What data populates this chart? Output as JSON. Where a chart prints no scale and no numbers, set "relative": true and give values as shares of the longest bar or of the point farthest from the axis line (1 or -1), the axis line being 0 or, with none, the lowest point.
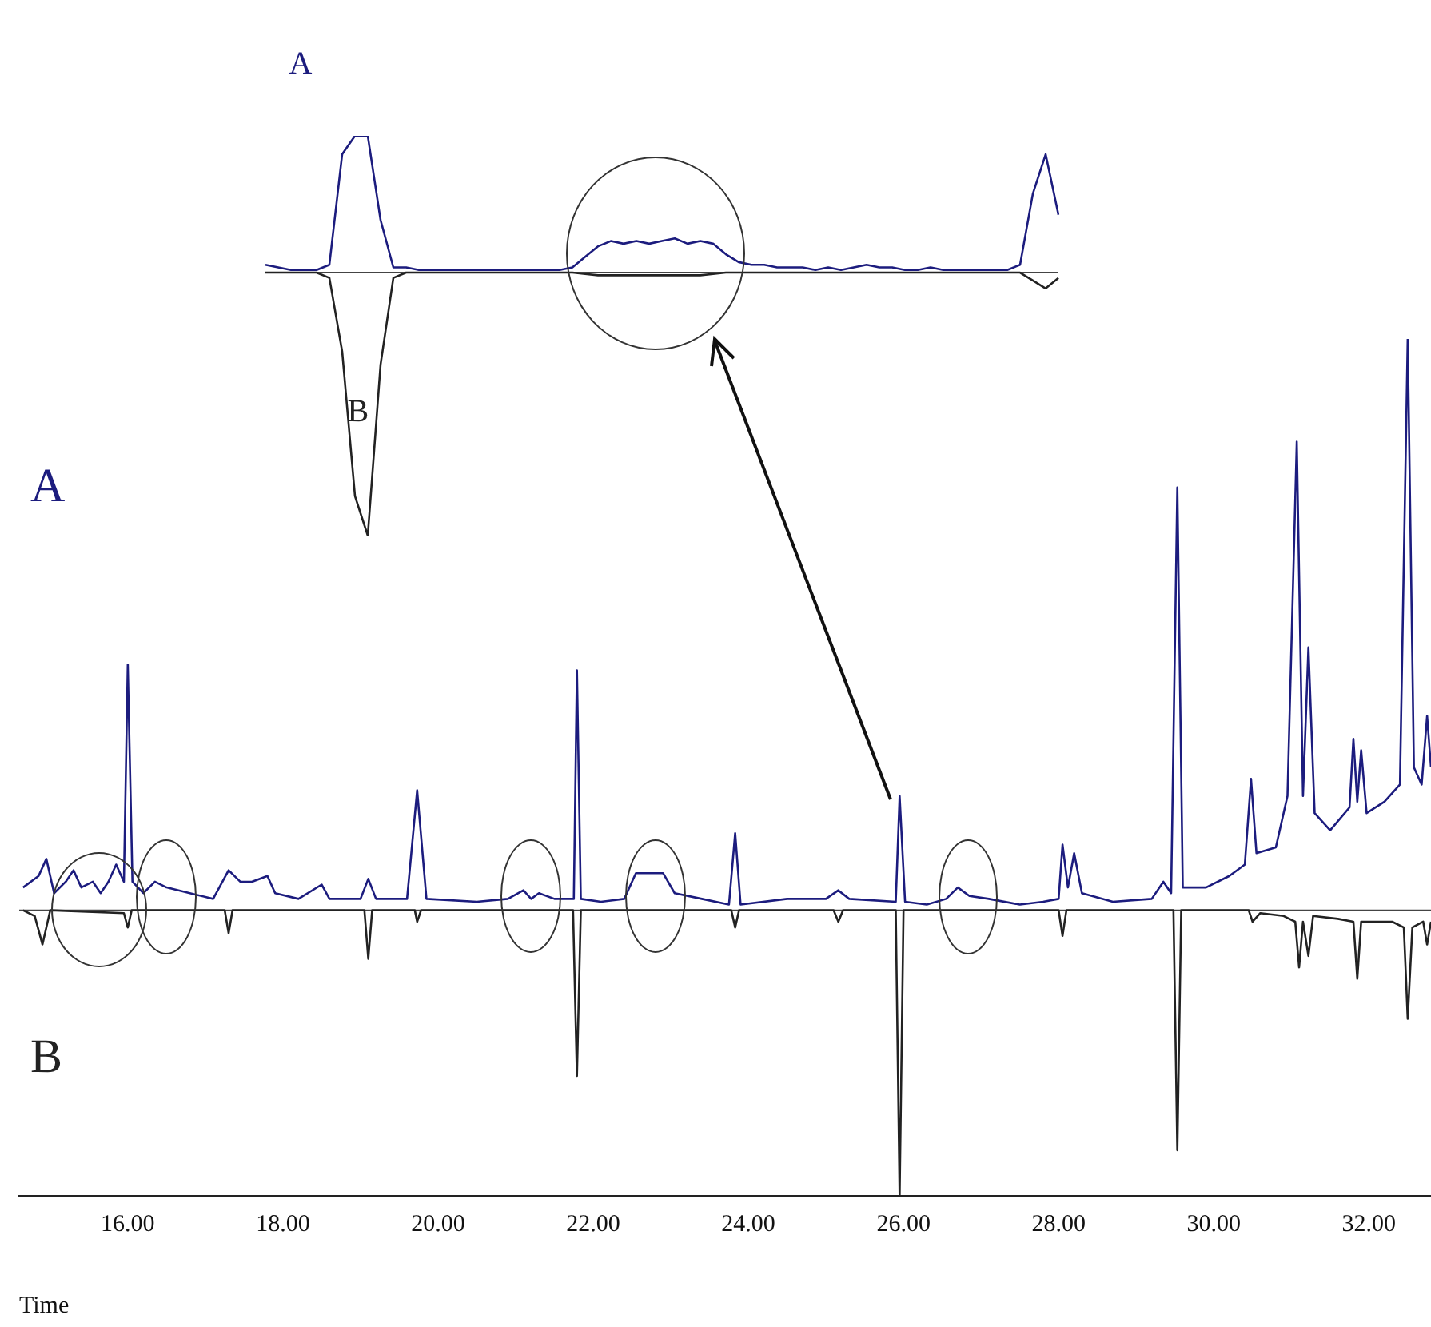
{
  "chart_data": [
    {
      "type": "line",
      "relative": true,
      "xlabel": "Time",
      "xlim": [
        14.6,
        32.8
      ],
      "xticks": [
        {
          "value": 16,
          "label": "16.00"
        },
        {
          "value": 18,
          "label": "18.00"
        },
        {
          "value": 20,
          "label": "20.00"
        },
        {
          "value": 22,
          "label": "22.00"
        },
        {
          "value": 24,
          "label": "24.00"
        },
        {
          "value": 26,
          "label": "26.00"
        },
        {
          "value": 28,
          "label": "28.00"
        },
        {
          "value": 30,
          "label": "30.00"
        },
        {
          "value": 32,
          "label": "32.00"
        }
      ],
      "series": [
        {
          "name": "A",
          "color": "#1c1c7e",
          "x": [
            14.65,
            14.85,
            14.95,
            15.05,
            15.2,
            15.3,
            15.4,
            15.55,
            15.65,
            15.75,
            15.85,
            15.95,
            16.0,
            16.06,
            16.2,
            16.35,
            16.5,
            16.8,
            17.1,
            17.3,
            17.45,
            17.6,
            17.8,
            17.9,
            18.2,
            18.5,
            18.6,
            19.0,
            19.1,
            19.2,
            19.6,
            19.73,
            19.85,
            20.5,
            20.9,
            21.1,
            21.2,
            21.3,
            21.5,
            21.75,
            21.79,
            21.84,
            22.1,
            22.4,
            22.55,
            22.9,
            23.05,
            23.4,
            23.75,
            23.83,
            23.9,
            24.5,
            25.0,
            25.16,
            25.3,
            25.9,
            25.95,
            26.02,
            26.3,
            26.55,
            26.7,
            26.85,
            27.1,
            27.5,
            27.8,
            28.0,
            28.05,
            28.12,
            28.2,
            28.3,
            28.7,
            29.2,
            29.35,
            29.45,
            29.53,
            29.6,
            29.9,
            30.2,
            30.4,
            30.48,
            30.55,
            30.8,
            30.95,
            31.07,
            31.15,
            31.22,
            31.3,
            31.5,
            31.75,
            31.8,
            31.85,
            31.9,
            31.97,
            32.2,
            32.4,
            32.5,
            32.58,
            32.68,
            32.75,
            32.8
          ],
          "values": [
            0.04,
            0.06,
            0.09,
            0.03,
            0.05,
            0.07,
            0.04,
            0.05,
            0.03,
            0.05,
            0.08,
            0.05,
            0.43,
            0.05,
            0.03,
            0.05,
            0.04,
            0.03,
            0.02,
            0.07,
            0.05,
            0.05,
            0.06,
            0.03,
            0.02,
            0.045,
            0.02,
            0.02,
            0.055,
            0.02,
            0.02,
            0.21,
            0.02,
            0.015,
            0.02,
            0.035,
            0.02,
            0.03,
            0.02,
            0.02,
            0.42,
            0.02,
            0.015,
            0.02,
            0.065,
            0.065,
            0.03,
            0.02,
            0.01,
            0.135,
            0.01,
            0.02,
            0.02,
            0.035,
            0.02,
            0.015,
            0.2,
            0.015,
            0.01,
            0.02,
            0.04,
            0.025,
            0.02,
            0.01,
            0.015,
            0.02,
            0.115,
            0.04,
            0.1,
            0.03,
            0.015,
            0.02,
            0.05,
            0.03,
            0.74,
            0.04,
            0.04,
            0.06,
            0.08,
            0.23,
            0.1,
            0.11,
            0.2,
            0.82,
            0.2,
            0.46,
            0.17,
            0.14,
            0.18,
            0.3,
            0.19,
            0.28,
            0.17,
            0.19,
            0.22,
            1.0,
            0.25,
            0.22,
            0.34,
            0.25
          ]
        },
        {
          "name": "B",
          "color": "#222222",
          "x": [
            14.65,
            14.8,
            14.9,
            15.0,
            15.95,
            16.0,
            16.05,
            17.25,
            17.3,
            17.35,
            19.05,
            19.1,
            19.15,
            19.7,
            19.73,
            19.78,
            21.74,
            21.79,
            21.84,
            23.78,
            23.83,
            23.88,
            25.1,
            25.16,
            25.22,
            25.9,
            25.95,
            26.0,
            28.0,
            28.05,
            28.1,
            29.48,
            29.53,
            29.58,
            30.45,
            30.5,
            30.6,
            30.9,
            31.05,
            31.1,
            31.15,
            31.22,
            31.28,
            31.6,
            31.8,
            31.85,
            31.9,
            32.3,
            32.45,
            32.5,
            32.56,
            32.7,
            32.75,
            32.8
          ],
          "values": [
            0,
            -0.01,
            -0.06,
            0,
            -0.005,
            -0.03,
            0,
            0,
            -0.04,
            0,
            0,
            -0.085,
            0,
            0,
            -0.02,
            0,
            0,
            -0.29,
            0,
            0,
            -0.03,
            0,
            0,
            -0.02,
            0,
            0,
            -0.5,
            0,
            0,
            -0.045,
            0,
            0,
            -0.42,
            0,
            0,
            -0.02,
            -0.005,
            -0.01,
            -0.02,
            -0.1,
            -0.02,
            -0.08,
            -0.01,
            -0.015,
            -0.02,
            -0.12,
            -0.02,
            -0.02,
            -0.03,
            -0.19,
            -0.03,
            -0.02,
            -0.06,
            -0.02
          ]
        }
      ]
    },
    {
      "type": "line",
      "relative": true,
      "tick_labels": false,
      "categories": [
        null,
        null,
        null,
        null,
        null,
        null,
        null,
        null,
        null,
        null,
        null,
        null,
        null,
        null,
        null,
        null,
        null,
        null,
        null,
        null,
        null,
        null,
        null,
        null,
        null,
        null,
        null,
        null,
        null,
        null,
        null,
        null,
        null,
        null,
        null,
        null,
        null,
        null,
        null,
        null,
        null,
        null,
        null,
        null,
        null,
        null,
        null,
        null,
        null,
        null,
        null,
        null,
        null,
        null,
        null,
        null,
        null,
        null,
        null,
        null,
        null,
        null,
        null
      ],
      "series": [
        {
          "name": "A",
          "color": "#1c1c7e",
          "values": [
            0.03,
            0.02,
            0.01,
            0.01,
            0.01,
            0.03,
            0.45,
            0.52,
            0.52,
            0.2,
            0.02,
            0.02,
            0.01,
            0.01,
            0.01,
            0.01,
            0.01,
            0.01,
            0.01,
            0.01,
            0.01,
            0.01,
            0.01,
            0.01,
            0.02,
            0.06,
            0.1,
            0.12,
            0.11,
            0.12,
            0.11,
            0.12,
            0.13,
            0.11,
            0.12,
            0.11,
            0.07,
            0.04,
            0.03,
            0.03,
            0.02,
            0.02,
            0.02,
            0.01,
            0.02,
            0.01,
            0.02,
            0.03,
            0.02,
            0.02,
            0.01,
            0.01,
            0.02,
            0.01,
            0.01,
            0.01,
            0.01,
            0.01,
            0.01,
            0.03,
            0.3,
            0.45,
            0.22
          ]
        },
        {
          "name": "B",
          "color": "#222222",
          "values": [
            0,
            0,
            0,
            0,
            0,
            -0.02,
            -0.3,
            -0.85,
            -1,
            -0.35,
            -0.02,
            0,
            0,
            0,
            0,
            0,
            0,
            0,
            0,
            0,
            0,
            0,
            0,
            0,
            0,
            -0.005,
            -0.01,
            -0.01,
            -0.01,
            -0.01,
            -0.01,
            -0.01,
            -0.01,
            -0.01,
            -0.01,
            -0.005,
            0,
            0,
            0,
            0,
            0,
            0,
            0,
            0,
            0,
            0,
            0,
            0,
            0,
            0,
            0,
            0,
            0,
            0,
            0,
            0,
            0,
            0,
            0,
            0,
            -0.03,
            -0.06,
            -0.02
          ]
        }
      ]
    }
  ]
}
